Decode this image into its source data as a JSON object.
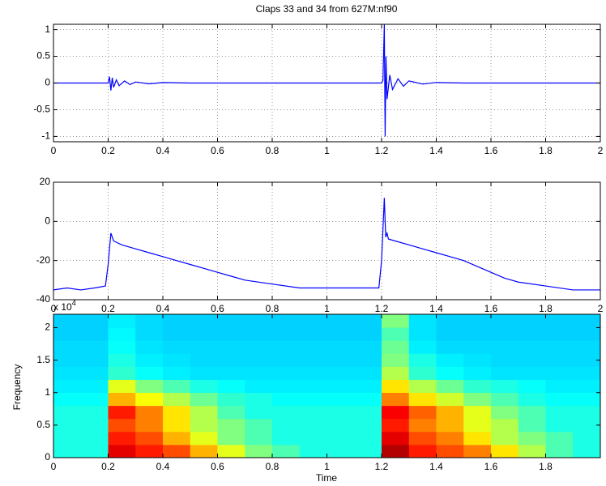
{
  "chart_data": [
    {
      "type": "line",
      "title": "Claps 33 and 34 from 627M:nf90",
      "grid": true,
      "xlim": [
        0,
        2
      ],
      "xticks": [
        0,
        0.2,
        0.4,
        0.6,
        0.8,
        1,
        1.2,
        1.4,
        1.6,
        1.8,
        2
      ],
      "ylim": [
        -1.1,
        1.1
      ],
      "yticks": [
        -1,
        -0.5,
        0,
        0.5,
        1
      ],
      "x": [
        0,
        0.2,
        0.205,
        0.21,
        0.215,
        0.22,
        0.23,
        0.24,
        0.26,
        0.28,
        0.3,
        0.35,
        0.4,
        0.5,
        1.2,
        1.205,
        1.21,
        1.213,
        1.216,
        1.22,
        1.23,
        1.24,
        1.26,
        1.28,
        1.3,
        1.35,
        1.4,
        1.5,
        2
      ],
      "series": [
        {
          "color": "#0000ff",
          "values": [
            0,
            0,
            0.12,
            -0.14,
            0.1,
            -0.08,
            0.06,
            -0.05,
            0.04,
            -0.03,
            0.02,
            -0.015,
            0.01,
            0,
            0,
            0.05,
            1.1,
            -1.0,
            0.5,
            -0.3,
            0.15,
            -0.12,
            0.08,
            -0.06,
            0.04,
            -0.02,
            0.01,
            0,
            0
          ]
        }
      ]
    },
    {
      "type": "line",
      "grid": true,
      "xlim": [
        0,
        2
      ],
      "xticks": [
        0,
        0.2,
        0.4,
        0.6,
        0.8,
        1,
        1.2,
        1.4,
        1.6,
        1.8,
        2
      ],
      "ylim": [
        -40,
        20
      ],
      "yticks": [
        -40,
        -20,
        0,
        20
      ],
      "x": [
        0,
        0.05,
        0.1,
        0.15,
        0.19,
        0.2,
        0.21,
        0.215,
        0.22,
        0.25,
        0.3,
        0.35,
        0.4,
        0.45,
        0.5,
        0.55,
        0.6,
        0.65,
        0.7,
        0.8,
        0.9,
        1.0,
        1.1,
        1.19,
        1.2,
        1.21,
        1.215,
        1.22,
        1.225,
        1.25,
        1.3,
        1.35,
        1.4,
        1.45,
        1.5,
        1.55,
        1.6,
        1.65,
        1.7,
        1.8,
        1.9,
        2
      ],
      "series": [
        {
          "color": "#0000ff",
          "values": [
            -35,
            -34,
            -35,
            -34,
            -33,
            -22,
            -6,
            -8,
            -10,
            -12,
            -14,
            -16,
            -18,
            -20,
            -22,
            -24,
            -26,
            -28,
            -30,
            -32,
            -34,
            -34,
            -34,
            -34,
            -20,
            12,
            -8,
            -6,
            -9,
            -10,
            -12,
            -14,
            -16,
            -18,
            -20,
            -23,
            -26,
            -29,
            -31,
            -33,
            -35,
            -35
          ]
        }
      ]
    },
    {
      "type": "heatmap",
      "xlabel": "Time",
      "ylabel": "Frequency",
      "yscale_label": "x 10",
      "yscale_power": "4",
      "colormap": "jet",
      "clim": [
        0,
        1
      ],
      "xlim": [
        0,
        2
      ],
      "xticks": [
        0,
        0.2,
        0.4,
        0.6,
        0.8,
        1,
        1.2,
        1.4,
        1.6,
        1.8
      ],
      "ylim": [
        0,
        22050
      ],
      "yticks": [
        {
          "value": 0,
          "label": "0"
        },
        {
          "value": 5000,
          "label": "0.5"
        },
        {
          "value": 10000,
          "label": "1"
        },
        {
          "value": 15000,
          "label": "1.5"
        },
        {
          "value": 20000,
          "label": "2"
        }
      ],
      "x": [
        0.05,
        0.15,
        0.25,
        0.35,
        0.45,
        0.55,
        0.65,
        0.75,
        0.85,
        0.95,
        1.05,
        1.15,
        1.25,
        1.35,
        1.45,
        1.55,
        1.65,
        1.75,
        1.85,
        1.95
      ],
      "y": [
        1002,
        3007,
        5011,
        7016,
        9020,
        11025,
        13030,
        15034,
        17039,
        19043,
        21048
      ],
      "z": [
        [
          0.4,
          0.4,
          0.9,
          0.85,
          0.8,
          0.7,
          0.6,
          0.5,
          0.45,
          0.4,
          0.4,
          0.4,
          0.95,
          0.85,
          0.8,
          0.75,
          0.65,
          0.55,
          0.45,
          0.4
        ],
        [
          0.4,
          0.4,
          0.85,
          0.8,
          0.7,
          0.6,
          0.5,
          0.45,
          0.4,
          0.4,
          0.4,
          0.4,
          0.9,
          0.8,
          0.75,
          0.65,
          0.55,
          0.5,
          0.45,
          0.4
        ],
        [
          0.4,
          0.4,
          0.8,
          0.75,
          0.65,
          0.55,
          0.5,
          0.45,
          0.4,
          0.4,
          0.4,
          0.4,
          0.85,
          0.75,
          0.7,
          0.6,
          0.55,
          0.45,
          0.4,
          0.4
        ],
        [
          0.4,
          0.4,
          0.85,
          0.75,
          0.65,
          0.55,
          0.45,
          0.4,
          0.4,
          0.4,
          0.4,
          0.4,
          0.88,
          0.78,
          0.7,
          0.6,
          0.5,
          0.45,
          0.4,
          0.4
        ],
        [
          0.38,
          0.38,
          0.7,
          0.62,
          0.55,
          0.48,
          0.42,
          0.4,
          0.38,
          0.38,
          0.38,
          0.38,
          0.75,
          0.65,
          0.58,
          0.5,
          0.45,
          0.4,
          0.38,
          0.38
        ],
        [
          0.36,
          0.36,
          0.6,
          0.5,
          0.45,
          0.4,
          0.38,
          0.36,
          0.36,
          0.36,
          0.36,
          0.36,
          0.65,
          0.55,
          0.48,
          0.42,
          0.4,
          0.38,
          0.36,
          0.36
        ],
        [
          0.35,
          0.35,
          0.42,
          0.38,
          0.36,
          0.35,
          0.35,
          0.35,
          0.35,
          0.35,
          0.35,
          0.35,
          0.55,
          0.42,
          0.38,
          0.36,
          0.35,
          0.35,
          0.35,
          0.35
        ],
        [
          0.34,
          0.34,
          0.4,
          0.36,
          0.35,
          0.34,
          0.34,
          0.34,
          0.34,
          0.34,
          0.34,
          0.34,
          0.5,
          0.4,
          0.36,
          0.35,
          0.34,
          0.34,
          0.34,
          0.34
        ],
        [
          0.34,
          0.34,
          0.38,
          0.35,
          0.34,
          0.34,
          0.34,
          0.34,
          0.34,
          0.34,
          0.34,
          0.34,
          0.48,
          0.36,
          0.34,
          0.34,
          0.34,
          0.34,
          0.34,
          0.34
        ],
        [
          0.33,
          0.33,
          0.37,
          0.34,
          0.33,
          0.33,
          0.33,
          0.33,
          0.33,
          0.33,
          0.33,
          0.33,
          0.45,
          0.35,
          0.33,
          0.33,
          0.33,
          0.33,
          0.33,
          0.33
        ],
        [
          0.33,
          0.33,
          0.36,
          0.34,
          0.33,
          0.33,
          0.33,
          0.33,
          0.33,
          0.33,
          0.33,
          0.33,
          0.5,
          0.35,
          0.33,
          0.33,
          0.33,
          0.33,
          0.33,
          0.33
        ]
      ]
    }
  ]
}
